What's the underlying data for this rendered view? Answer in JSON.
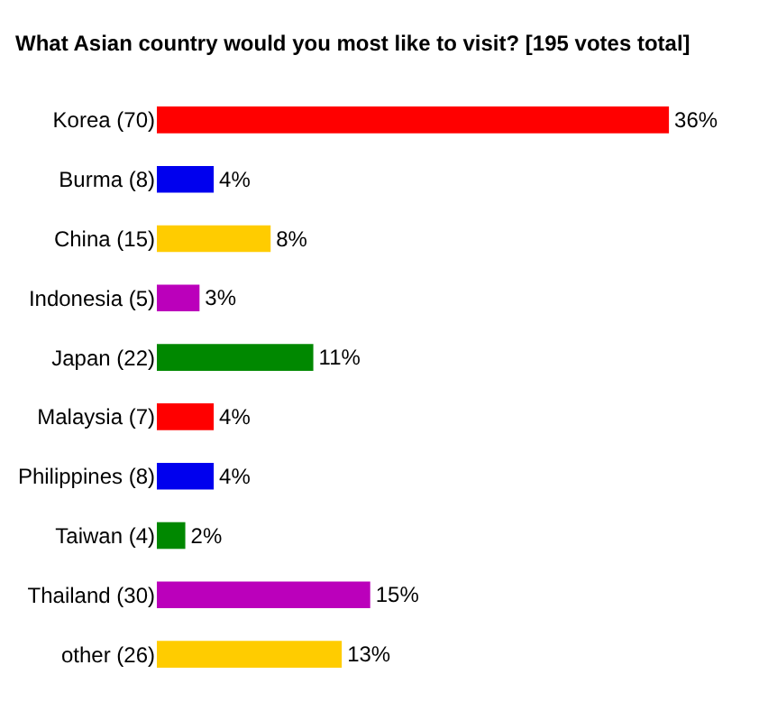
{
  "chart_data": {
    "type": "bar",
    "orientation": "horizontal",
    "title": "What Asian country would you most like to visit? [195 votes total]",
    "categories": [
      "Korea (70)",
      "Burma (8)",
      "China (15)",
      "Indonesia (5)",
      "Japan (22)",
      "Malaysia (7)",
      "Philippines (8)",
      "Taiwan (4)",
      "Thailand (30)",
      "other (26)"
    ],
    "values": [
      36,
      4,
      8,
      3,
      11,
      4,
      4,
      2,
      15,
      13
    ],
    "colors": [
      "#ff0000",
      "#0000ee",
      "#ffcc00",
      "#bb00bb",
      "#008800",
      "#ff0000",
      "#0000ee",
      "#008800",
      "#bb00bb",
      "#ffcc00"
    ],
    "value_labels": [
      "36%",
      "4%",
      "8%",
      "3%",
      "11%",
      "4%",
      "4%",
      "2%",
      "15%",
      "13%"
    ],
    "grid": false,
    "legend": false
  }
}
